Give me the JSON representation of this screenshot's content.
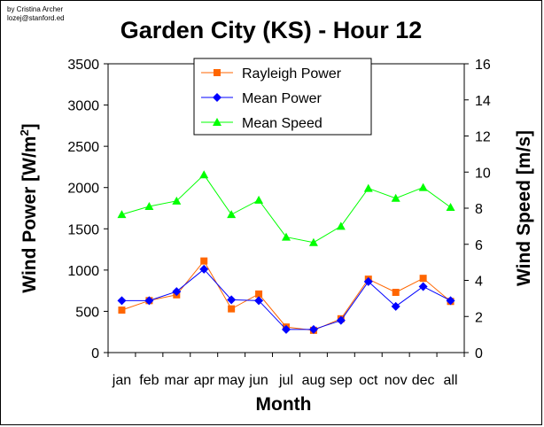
{
  "credit": {
    "line1": "by Cristina Archer",
    "line2": "lozej@stanford.ed"
  },
  "chart_data": {
    "type": "line",
    "title": "Garden City (KS) - Hour 12",
    "xlabel": "Month",
    "ylabel_left": "Wind Power [W/m",
    "ylabel_left_sup": "2",
    "ylabel_left_end": "]",
    "ylabel_right": "Wind Speed [m/s]",
    "categories": [
      "jan",
      "feb",
      "mar",
      "apr",
      "may",
      "jun",
      "jul",
      "aug",
      "sep",
      "oct",
      "nov",
      "dec",
      "all"
    ],
    "ylim_left": [
      0,
      3500
    ],
    "ylim_right": [
      0,
      16
    ],
    "yticks_left": [
      "0",
      "500",
      "1000",
      "1500",
      "2000",
      "2500",
      "3000",
      "3500"
    ],
    "yticks_right": [
      "0",
      "2",
      "4",
      "6",
      "8",
      "10",
      "12",
      "14",
      "16"
    ],
    "grid": false,
    "legend_position": "top-center",
    "series": [
      {
        "name": "Rayleigh Power",
        "axis": "left",
        "color": "#ff6600",
        "marker": "square",
        "values": [
          515,
          630,
          700,
          1110,
          530,
          710,
          310,
          270,
          410,
          890,
          730,
          900,
          620
        ]
      },
      {
        "name": "Mean Power",
        "axis": "left",
        "color": "#0000ff",
        "marker": "diamond",
        "values": [
          630,
          630,
          740,
          1010,
          640,
          630,
          280,
          280,
          390,
          860,
          560,
          800,
          630
        ]
      },
      {
        "name": "Mean Speed",
        "axis": "right",
        "color": "#00ff00",
        "marker": "triangle",
        "values": [
          7.65,
          8.1,
          8.4,
          9.85,
          7.65,
          8.45,
          6.4,
          6.1,
          7.0,
          9.1,
          8.55,
          9.15,
          8.05
        ]
      }
    ]
  }
}
